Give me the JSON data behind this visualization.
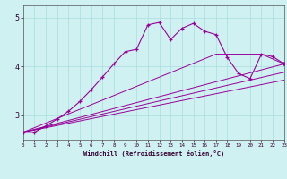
{
  "xlabel": "Windchill (Refroidissement éolien,°C)",
  "background_color": "#cff1f1",
  "line_color": "#990099",
  "xlim": [
    0,
    23
  ],
  "ylim": [
    2.5,
    5.25
  ],
  "yticks": [
    3,
    4,
    5
  ],
  "xticks": [
    0,
    1,
    2,
    3,
    4,
    5,
    6,
    7,
    8,
    9,
    10,
    11,
    12,
    13,
    14,
    15,
    16,
    17,
    18,
    19,
    20,
    21,
    22,
    23
  ],
  "series1_x": [
    0,
    1,
    2,
    3,
    4,
    5,
    6,
    7,
    8,
    9,
    10,
    11,
    12,
    13,
    14,
    15,
    16,
    17,
    18,
    19,
    20,
    21,
    22,
    23
  ],
  "series1_y": [
    2.65,
    2.65,
    2.78,
    2.92,
    3.08,
    3.28,
    3.52,
    3.78,
    4.05,
    4.3,
    4.35,
    4.85,
    4.9,
    4.55,
    4.78,
    4.88,
    4.72,
    4.65,
    4.18,
    3.85,
    3.75,
    4.25,
    4.2,
    4.05
  ],
  "series2_x": [
    0,
    17,
    21,
    23
  ],
  "series2_y": [
    2.65,
    4.25,
    4.25,
    4.05
  ],
  "series3_x": [
    0,
    23
  ],
  "series3_y": [
    2.65,
    3.72
  ],
  "series4_x": [
    0,
    23
  ],
  "series4_y": [
    2.65,
    3.88
  ],
  "series5_x": [
    0,
    23
  ],
  "series5_y": [
    2.65,
    4.05
  ],
  "grid_color": "#aadddd"
}
